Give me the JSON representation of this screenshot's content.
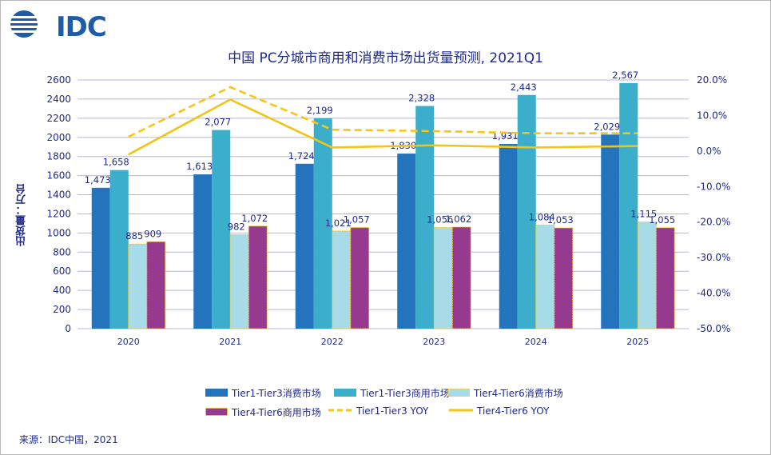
{
  "brand": {
    "logo_text": "IDC",
    "icon": "idc-globe-icon"
  },
  "source_note": "来源：IDC中国，2021",
  "colors": {
    "t13_consumer": "#2473bd",
    "t13_commercial": "#3aaecb",
    "t46_consumer": "#a7dbe7",
    "t46_commercial": "#953a8f",
    "t13_yoy": "#f5c518",
    "t46_yoy": "#f0c419",
    "grid": "#b9b3e6",
    "axis_text": "#1f2a8a"
  },
  "chart_data": {
    "type": "bar",
    "title": "中国 PC分城市商用和消费市场出货量预测, 2021Q1",
    "xlabel": "",
    "ylabel": "出货量：万台",
    "ylim": [
      0,
      2600
    ],
    "y2lim": [
      -0.5,
      0.2
    ],
    "categories": [
      "2020",
      "2021",
      "2022",
      "2023",
      "2024",
      "2025"
    ],
    "y_ticks": [
      "0",
      "200",
      "400",
      "600",
      "800",
      "1000",
      "1200",
      "1400",
      "1600",
      "1800",
      "2000",
      "2200",
      "2400",
      "2600"
    ],
    "y2_ticks": [
      "-50.0%",
      "-40.0%",
      "-30.0%",
      "-20.0%",
      "-10.0%",
      "0.0%",
      "10.0%",
      "20.0%"
    ],
    "series": [
      {
        "name": "Tier1-Tier3消费市场",
        "kind": "bar",
        "values": [
          1473,
          1613,
          1724,
          1830,
          1931,
          2029
        ],
        "labels": [
          "1,473",
          "1,613",
          "1,724",
          "1,830",
          "1,931",
          "2,029"
        ]
      },
      {
        "name": "Tier1-Tier3商用市场",
        "kind": "bar",
        "values": [
          1658,
          2077,
          2199,
          2328,
          2443,
          2567
        ],
        "labels": [
          "1,658",
          "2,077",
          "2,199",
          "2,328",
          "2,443",
          "2,567"
        ]
      },
      {
        "name": "Tier4-Tier6消费市场",
        "kind": "bar",
        "values": [
          885,
          982,
          1021,
          1056,
          1084,
          1115
        ],
        "labels": [
          "885",
          "982",
          "1,021",
          "1,056",
          "1,084",
          "1,115"
        ]
      },
      {
        "name": "Tier4-Tier6商用市场",
        "kind": "bar",
        "values": [
          909,
          1072,
          1057,
          1062,
          1053,
          1055
        ],
        "labels": [
          "909",
          "1,072",
          "1,057",
          "1,062",
          "1,053",
          "1,055"
        ]
      },
      {
        "name": "Tier1-Tier3 YOY",
        "kind": "line",
        "style": "dashed",
        "axis": "right",
        "values": [
          0.04,
          0.18,
          0.06,
          0.056,
          0.05,
          0.05
        ]
      },
      {
        "name": "Tier4-Tier6 YOY",
        "kind": "line",
        "style": "solid",
        "axis": "right",
        "values": [
          -0.01,
          0.145,
          0.01,
          0.016,
          0.01,
          0.014
        ]
      }
    ]
  }
}
